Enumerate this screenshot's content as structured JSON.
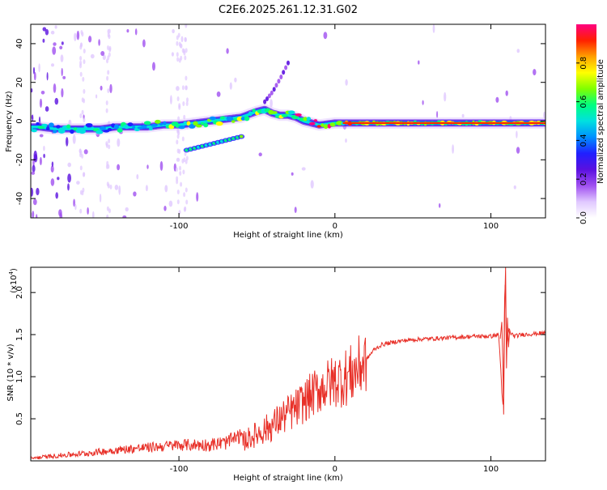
{
  "chart_data": [
    {
      "type": "heatmap",
      "title": "C2E6.2025.261.12.31.G02",
      "xlabel": "Height of straight line (km)",
      "ylabel": "Frequency (Hz)",
      "xlim": [
        -195,
        135
      ],
      "ylim": [
        -50,
        50
      ],
      "x_ticks": [
        -100,
        0,
        100
      ],
      "x_tick_labels": [
        "-100",
        "0",
        "100"
      ],
      "y_ticks": [
        -40,
        -20,
        0,
        20,
        40
      ],
      "y_tick_labels": [
        "-40",
        "-20",
        "0",
        "20",
        "40"
      ],
      "frequency_ridge": {
        "x": [
          -190,
          -180,
          -170,
          -160,
          -150,
          -140,
          -130,
          -120,
          -110,
          -100,
          -90,
          -80,
          -70,
          -60,
          -50,
          -45,
          -40,
          -35,
          -30,
          -25,
          -20,
          -15,
          -10,
          0,
          10,
          20,
          40,
          60,
          80,
          100,
          120,
          135
        ],
        "y": [
          -3,
          -4,
          -4,
          -4,
          -4,
          -3,
          -3,
          -3,
          -2,
          -2,
          -1,
          0,
          1,
          2,
          5,
          6,
          4,
          3,
          3,
          2,
          0,
          -1,
          -2,
          -1,
          -1,
          -1,
          -1,
          -1,
          -1,
          -1,
          -1,
          -1
        ]
      },
      "secondary_branch": {
        "x": [
          -95,
          -90,
          -80,
          -70,
          -60
        ],
        "y": [
          -15,
          -14,
          -12,
          -10,
          -8
        ]
      },
      "upper_branch": {
        "x": [
          -45,
          -40,
          -35,
          -30
        ],
        "y": [
          10,
          15,
          22,
          30
        ]
      },
      "colorbar": {
        "label": "Normalized spectral amplitude",
        "range": [
          0,
          1
        ],
        "ticks": [
          0,
          0.2,
          0.4,
          0.6,
          0.8
        ],
        "tick_labels": [
          "0.0",
          "0.2",
          "0.4",
          "0.6",
          "0.8"
        ],
        "colors": [
          "#ffffff",
          "#e0c8ff",
          "#a050f0",
          "#5a10e0",
          "#2020ff",
          "#0090ff",
          "#00e0e0",
          "#00ff80",
          "#80ff00",
          "#ffff00",
          "#ffa000",
          "#ff2000",
          "#ff0080"
        ]
      }
    },
    {
      "type": "line",
      "xlabel": "Height of straight line (km)",
      "ylabel": "SNR (10 * v/v)",
      "y_scale_label": "(x10",
      "y_scale_exponent": "4",
      "y_scale_suffix": ")",
      "xlim": [
        -195,
        135
      ],
      "ylim": [
        0,
        2.3
      ],
      "x_ticks": [
        -100,
        0,
        100
      ],
      "x_tick_labels": [
        "-100",
        "0",
        "100"
      ],
      "y_ticks": [
        0.5,
        1.0,
        1.5,
        2.0
      ],
      "y_tick_labels": [
        "0.5",
        "1.0",
        "1.5",
        "2.0"
      ],
      "series": [
        {
          "name": "SNR",
          "color": "#e83028",
          "x": [
            -195,
            -180,
            -160,
            -140,
            -120,
            -100,
            -80,
            -70,
            -60,
            -50,
            -40,
            -35,
            -30,
            -25,
            -20,
            -15,
            -10,
            -5,
            0,
            5,
            10,
            15,
            20,
            25,
            30,
            40,
            50,
            60,
            70,
            80,
            90,
            100,
            105,
            108,
            109,
            110,
            111,
            115,
            120,
            135
          ],
          "y": [
            0.02,
            0.04,
            0.06,
            0.09,
            0.11,
            0.13,
            0.12,
            0.14,
            0.22,
            0.32,
            0.42,
            0.5,
            0.56,
            0.62,
            0.7,
            0.78,
            0.85,
            0.9,
            0.95,
            0.98,
            1.02,
            1.1,
            1.2,
            1.32,
            1.38,
            1.42,
            1.44,
            1.45,
            1.46,
            1.47,
            1.48,
            1.48,
            1.5,
            0.55,
            2.25,
            1.3,
            1.55,
            1.48,
            1.5,
            1.52
          ]
        }
      ]
    }
  ]
}
